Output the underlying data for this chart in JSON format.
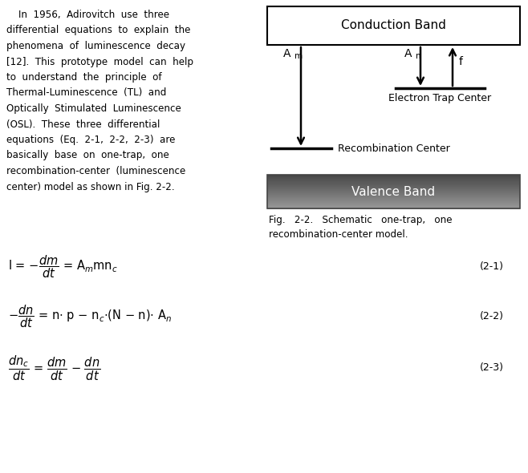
{
  "bg_color": "#ffffff",
  "left_text_lines": [
    "    In  1956,  Adirovitch  use  three",
    "differential  equations  to  explain  the",
    "phenomena  of  luminescence  decay",
    "[12].  This  prototype  model  can  help",
    "to  understand  the  principle  of",
    "Thermal-Luminescence  (TL)  and",
    "Optically  Stimulated  Luminescence",
    "(OSL).  These  three  differential",
    "equations  (Eq.  2-1,  2-2,  2-3)  are",
    "basically  base  on  one-trap,  one",
    "recombination-center  (luminescence",
    "center) model as shown in Fig. 2-2."
  ],
  "diagram_title_cb": "Conduction Band",
  "diagram_title_vb": "Valence Band",
  "diagram_label_am": "A",
  "diagram_label_am_sub": "m",
  "diagram_label_an": "A",
  "diagram_label_an_sub": "n",
  "diagram_label_f": "f",
  "diagram_label_etc": "Electron Trap Center",
  "diagram_label_rc": "Recombination Center",
  "fig_caption_line1": "Fig.   2-2.   Schematic   one-trap,   one",
  "fig_caption_line2": "recombination-center model.",
  "eq1_label": "(2-1)",
  "eq2_label": "(2-2)",
  "eq3_label": "(2-3)"
}
